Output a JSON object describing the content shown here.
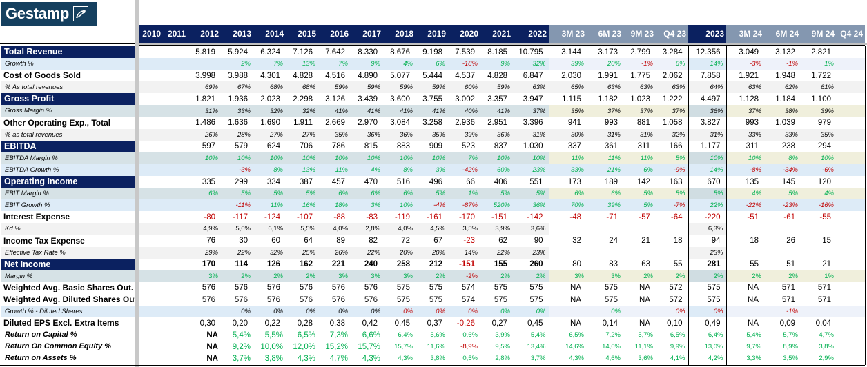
{
  "logo": {
    "text": "Gestamp",
    "icon": "gestamp-swoosh-icon",
    "bg": "#15405f"
  },
  "colors": {
    "navy": "#0b2160",
    "header_gray": "#8497b0",
    "positive": "#00b050",
    "negative": "#c00000"
  },
  "columns": [
    "2010",
    "2011",
    "2012",
    "2013",
    "2014",
    "2015",
    "2016",
    "2017",
    "2018",
    "2019",
    "2020",
    "2021",
    "2022",
    "3M 23",
    "6M 23",
    "9M 23",
    "Q4 23",
    "2023",
    "3M 24",
    "6M 24",
    "9M 24",
    "Q4 24"
  ],
  "rows": [
    {
      "label": "Total Revenue",
      "kind": "section",
      "bg": "white",
      "fmt": "num",
      "values": [
        "",
        "",
        "5.819",
        "5.924",
        "6.324",
        "7.126",
        "7.642",
        "8.330",
        "8.676",
        "9.198",
        "7.539",
        "8.185",
        "10.795",
        "3.144",
        "3.173",
        "2.799",
        "3.284",
        "12.356",
        "3.049",
        "3.132",
        "2.821",
        ""
      ]
    },
    {
      "label": "Growth %",
      "kind": "sub",
      "bg": "growth",
      "fmt": "pct",
      "color": "auto",
      "values": [
        "",
        "",
        "",
        "2%",
        "7%",
        "13%",
        "7%",
        "9%",
        "4%",
        "6%",
        "-18%",
        "9%",
        "32%",
        "39%",
        "20%",
        "-1%",
        "6%",
        "14%",
        "-3%",
        "-1%",
        "1%",
        ""
      ]
    },
    {
      "label": "Cost of Goods Sold",
      "kind": "main",
      "bg": "white",
      "fmt": "num",
      "values": [
        "",
        "",
        "3.998",
        "3.988",
        "4.301",
        "4.828",
        "4.516",
        "4.890",
        "5.077",
        "5.444",
        "4.537",
        "4.828",
        "6.847",
        "2.030",
        "1.991",
        "1.775",
        "2.062",
        "7.858",
        "1.921",
        "1.948",
        "1.722",
        ""
      ]
    },
    {
      "label": "% As total revenues",
      "kind": "sub",
      "bg": "pct",
      "fmt": "pct",
      "color": "black",
      "values": [
        "",
        "",
        "69%",
        "67%",
        "68%",
        "68%",
        "59%",
        "59%",
        "59%",
        "59%",
        "60%",
        "59%",
        "63%",
        "65%",
        "63%",
        "63%",
        "63%",
        "64%",
        "63%",
        "62%",
        "61%",
        ""
      ]
    },
    {
      "label": "Gross Profit",
      "kind": "section",
      "bg": "white",
      "fmt": "num",
      "values": [
        "",
        "",
        "1.821",
        "1.936",
        "2.023",
        "2.298",
        "3.126",
        "3.439",
        "3.600",
        "3.755",
        "3.002",
        "3.357",
        "3.947",
        "1.115",
        "1.182",
        "1.023",
        "1.222",
        "4.497",
        "1.128",
        "1.184",
        "1.100",
        ""
      ]
    },
    {
      "label": "Gross Margin %",
      "kind": "sub",
      "bg": "margin",
      "fmt": "pct",
      "color": "black",
      "values": [
        "",
        "",
        "31%",
        "33%",
        "32%",
        "32%",
        "41%",
        "41%",
        "41%",
        "41%",
        "40%",
        "41%",
        "37%",
        "35%",
        "37%",
        "37%",
        "37%",
        "36%",
        "37%",
        "38%",
        "39%",
        ""
      ]
    },
    {
      "label": "Other Operating Exp., Total",
      "kind": "main",
      "bg": "white",
      "fmt": "num",
      "values": [
        "",
        "",
        "1.486",
        "1.636",
        "1.690",
        "1.911",
        "2.669",
        "2.970",
        "3.084",
        "3.258",
        "2.936",
        "2.951",
        "3.396",
        "941",
        "993",
        "881",
        "1.058",
        "3.827",
        "993",
        "1.039",
        "979",
        ""
      ]
    },
    {
      "label": "% as total revenues",
      "kind": "sub",
      "bg": "pct",
      "fmt": "pct",
      "color": "black",
      "values": [
        "",
        "",
        "26%",
        "28%",
        "27%",
        "27%",
        "35%",
        "36%",
        "36%",
        "35%",
        "39%",
        "36%",
        "31%",
        "30%",
        "31%",
        "31%",
        "32%",
        "31%",
        "33%",
        "33%",
        "35%",
        ""
      ]
    },
    {
      "label": "EBITDA",
      "kind": "section",
      "bg": "white",
      "fmt": "num",
      "values": [
        "",
        "",
        "597",
        "579",
        "624",
        "706",
        "786",
        "815",
        "883",
        "909",
        "523",
        "837",
        "1.030",
        "337",
        "361",
        "311",
        "166",
        "1.177",
        "311",
        "238",
        "294",
        ""
      ]
    },
    {
      "label": "EBITDA Margin %",
      "kind": "sub",
      "bg": "margin",
      "fmt": "pct",
      "color": "auto",
      "values": [
        "",
        "",
        "10%",
        "10%",
        "10%",
        "10%",
        "10%",
        "10%",
        "10%",
        "10%",
        "7%",
        "10%",
        "10%",
        "11%",
        "11%",
        "11%",
        "5%",
        "10%",
        "10%",
        "8%",
        "10%",
        ""
      ]
    },
    {
      "label": "EBITDA Growth %",
      "kind": "sub",
      "bg": "growth2",
      "fmt": "pct",
      "color": "auto",
      "values": [
        "",
        "",
        "",
        "-3%",
        "8%",
        "13%",
        "11%",
        "4%",
        "8%",
        "3%",
        "-42%",
        "60%",
        "23%",
        "33%",
        "21%",
        "6%",
        "-9%",
        "14%",
        "-8%",
        "-34%",
        "-6%",
        ""
      ]
    },
    {
      "label": "Operating Income",
      "kind": "section",
      "bg": "white",
      "fmt": "num",
      "values": [
        "",
        "",
        "335",
        "299",
        "334",
        "387",
        "457",
        "470",
        "516",
        "496",
        "66",
        "406",
        "551",
        "173",
        "189",
        "142",
        "163",
        "670",
        "135",
        "145",
        "120",
        ""
      ]
    },
    {
      "label": "EBIT Margin %",
      "kind": "sub",
      "bg": "margin",
      "fmt": "pct",
      "color": "auto",
      "values": [
        "",
        "",
        "6%",
        "5%",
        "5%",
        "5%",
        "6%",
        "6%",
        "6%",
        "5%",
        "1%",
        "5%",
        "5%",
        "6%",
        "6%",
        "5%",
        "5%",
        "5%",
        "4%",
        "5%",
        "4%",
        ""
      ]
    },
    {
      "label": "EBIT Growth %",
      "kind": "sub",
      "bg": "growth2",
      "fmt": "pct",
      "color": "auto",
      "values": [
        "",
        "",
        "",
        "-11%",
        "11%",
        "16%",
        "18%",
        "3%",
        "10%",
        "-4%",
        "-87%",
        "520%",
        "36%",
        "70%",
        "39%",
        "5%",
        "-7%",
        "22%",
        "-22%",
        "-23%",
        "-16%",
        ""
      ]
    },
    {
      "label": "Interest Expense",
      "kind": "main",
      "bg": "white",
      "fmt": "num",
      "values": [
        "",
        "",
        "-80",
        "-117",
        "-124",
        "-107",
        "-88",
        "-83",
        "-119",
        "-161",
        "-170",
        "-151",
        "-142",
        "-48",
        "-71",
        "-57",
        "-64",
        "-220",
        "-51",
        "-61",
        "-55",
        ""
      ]
    },
    {
      "label": "Kd %",
      "kind": "sub",
      "bg": "kd",
      "fmt": "pct",
      "color": "black",
      "upright": true,
      "values": [
        "",
        "",
        "4,9%",
        "5,6%",
        "6,1%",
        "5,5%",
        "4,0%",
        "2,8%",
        "4,0%",
        "4,5%",
        "3,5%",
        "3,9%",
        "3,6%",
        "",
        "",
        "",
        "",
        "6,3%",
        "",
        "",
        "",
        ""
      ]
    },
    {
      "label": "Income Tax Expense",
      "kind": "main",
      "bg": "white",
      "fmt": "num",
      "values": [
        "",
        "",
        "76",
        "30",
        "60",
        "64",
        "89",
        "82",
        "72",
        "67",
        "-23",
        "62",
        "90",
        "32",
        "24",
        "21",
        "18",
        "94",
        "18",
        "26",
        "15",
        ""
      ]
    },
    {
      "label": "Effective Tax Rate %",
      "kind": "sub",
      "bg": "kd",
      "fmt": "pct",
      "color": "black",
      "values": [
        "",
        "",
        "29%",
        "22%",
        "32%",
        "25%",
        "26%",
        "22%",
        "20%",
        "20%",
        "14%",
        "22%",
        "23%",
        "",
        "",
        "",
        "",
        "23%",
        "",
        "",
        "",
        ""
      ]
    },
    {
      "label": "Net Income",
      "kind": "section",
      "bg": "white",
      "fmt": "num",
      "bold": true,
      "values": [
        "",
        "",
        "170",
        "114",
        "126",
        "162",
        "221",
        "240",
        "258",
        "212",
        "-151",
        "155",
        "260",
        "80",
        "83",
        "63",
        "55",
        "281",
        "55",
        "51",
        "21",
        ""
      ]
    },
    {
      "label": "Margin %",
      "kind": "sub",
      "bg": "margin",
      "fmt": "pct",
      "color": "auto",
      "upright": true,
      "values": [
        "",
        "",
        "3%",
        "2%",
        "2%",
        "2%",
        "3%",
        "3%",
        "3%",
        "2%",
        "-2%",
        "2%",
        "2%",
        "3%",
        "3%",
        "2%",
        "2%",
        "2%",
        "2%",
        "2%",
        "1%",
        ""
      ]
    },
    {
      "label": "Weighted Avg. Basic Shares Out.",
      "kind": "main",
      "bg": "white",
      "fmt": "num",
      "values": [
        "",
        "",
        "576",
        "576",
        "576",
        "576",
        "576",
        "576",
        "575",
        "575",
        "574",
        "575",
        "575",
        "NA",
        "575",
        "NA",
        "572",
        "575",
        "NA",
        "571",
        "571",
        ""
      ]
    },
    {
      "label": "Weighted Avg. Diluted Shares Out.",
      "kind": "main",
      "bg": "white",
      "fmt": "num",
      "values": [
        "",
        "",
        "576",
        "576",
        "576",
        "576",
        "576",
        "576",
        "575",
        "575",
        "574",
        "575",
        "575",
        "NA",
        "575",
        "NA",
        "572",
        "575",
        "NA",
        "571",
        "571",
        ""
      ]
    },
    {
      "label": "Growth % - Diluted Shares",
      "kind": "sub",
      "bg": "growth",
      "fmt": "pct",
      "color": "list",
      "values": [
        "",
        "",
        "",
        "0%",
        "0%",
        "0%",
        "0%",
        "0%",
        "0%",
        "0%",
        "0%",
        "0%",
        "0%",
        "",
        "0%",
        "",
        "0%",
        "0%",
        "",
        "-1%",
        "",
        ""
      ],
      "colors": [
        "",
        "",
        "",
        "black",
        "black",
        "black",
        "black",
        "black",
        "red",
        "red",
        "red",
        "green",
        "green",
        "",
        "green",
        "",
        "red",
        "red",
        "",
        "red",
        "",
        ""
      ]
    },
    {
      "label": "Diluted EPS Excl. Extra Items",
      "kind": "main",
      "bg": "white",
      "fmt": "num",
      "values": [
        "",
        "",
        "0,30",
        "0,20",
        "0,22",
        "0,28",
        "0,38",
        "0,42",
        "0,45",
        "0,37",
        "-0,26",
        "0,27",
        "0,45",
        "NA",
        "0,14",
        "NA",
        "0,10",
        "0,49",
        "NA",
        "0,09",
        "0,04",
        ""
      ]
    },
    {
      "label": "Return on Capital %",
      "kind": "ret",
      "bg": "white",
      "fmt": "ret",
      "values": [
        "",
        "",
        "NA",
        "5,4%",
        "5,5%",
        "6,5%",
        "7,3%",
        "6,6%",
        "6,4%",
        "5,6%",
        "0,6%",
        "3,9%",
        "5,4%",
        "6,5%",
        "7,2%",
        "5,7%",
        "6,5%",
        "6,4%",
        "5,4%",
        "5,7%",
        "4,7%",
        ""
      ]
    },
    {
      "label": "Return On Common Equity %",
      "kind": "ret",
      "bg": "white",
      "fmt": "ret",
      "values": [
        "",
        "",
        "NA",
        "9,2%",
        "10,0%",
        "12,0%",
        "15,2%",
        "15,7%",
        "15,7%",
        "11,6%",
        "-8,9%",
        "9,5%",
        "13,4%",
        "14,6%",
        "14,6%",
        "11,1%",
        "9,9%",
        "13,0%",
        "9,7%",
        "8,9%",
        "3,8%",
        ""
      ]
    },
    {
      "label": "Return on Assets %",
      "kind": "ret",
      "bg": "white",
      "fmt": "ret",
      "values": [
        "",
        "",
        "NA",
        "3,7%",
        "3,8%",
        "4,3%",
        "4,7%",
        "4,3%",
        "4,3%",
        "3,8%",
        "0,5%",
        "2,8%",
        "3,7%",
        "4,3%",
        "4,6%",
        "3,6%",
        "4,1%",
        "4,2%",
        "3,3%",
        "3,5%",
        "2,9%",
        ""
      ]
    }
  ]
}
